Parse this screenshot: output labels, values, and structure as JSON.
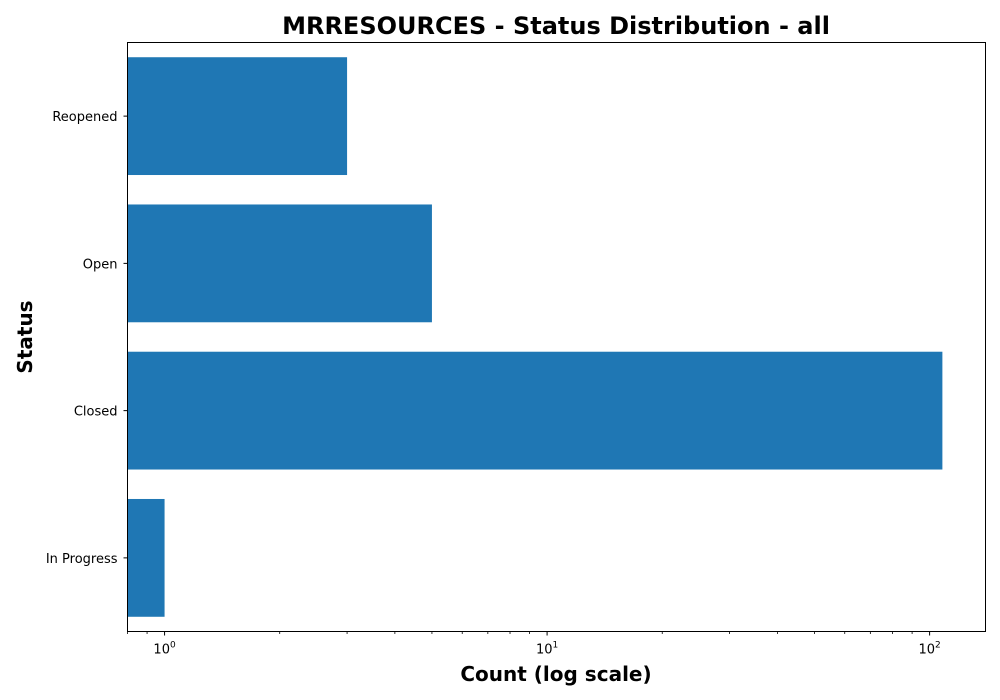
{
  "chart_data": {
    "type": "bar",
    "orientation": "horizontal",
    "title": "MRRESOURCES - Status Distribution - all",
    "xlabel": "Count (log scale)",
    "ylabel": "Status",
    "x_scale": "log",
    "xlim": [
      0.8,
      140
    ],
    "x_ticks": [
      {
        "value": 1,
        "base": "10",
        "exponent": "0"
      },
      {
        "value": 10,
        "base": "10",
        "exponent": "1"
      },
      {
        "value": 100,
        "base": "10",
        "exponent": "2"
      }
    ],
    "categories": [
      "In Progress",
      "Closed",
      "Open",
      "Reopened"
    ],
    "values": [
      1,
      108,
      5,
      3
    ],
    "bar_color": "#1f77b4",
    "grid": false,
    "legend": "none"
  }
}
